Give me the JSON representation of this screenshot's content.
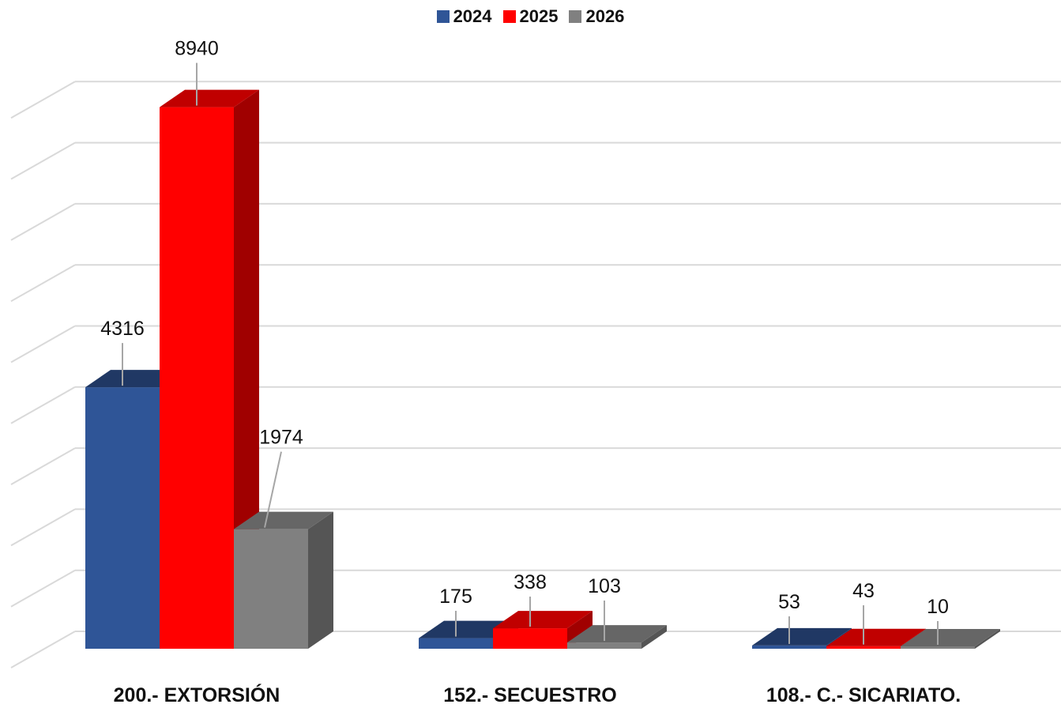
{
  "chart_data": {
    "type": "bar",
    "categories": [
      "200.- EXTORSIÓN",
      "152.- SECUESTRO",
      "108.- C.- SICARIATO."
    ],
    "series": [
      {
        "name": "2024",
        "values": [
          4316,
          175,
          53
        ],
        "color": "#2F5597",
        "top_color": "#203864",
        "side_color": "#1F3A6E"
      },
      {
        "name": "2025",
        "values": [
          8940,
          338,
          43
        ],
        "color": "#FF0000",
        "top_color": "#C00000",
        "side_color": "#A00000"
      },
      {
        "name": "2026",
        "values": [
          1974,
          103,
          10
        ],
        "color": "#808080",
        "top_color": "#666666",
        "side_color": "#555555"
      }
    ],
    "ylim": [
      0,
      9000
    ],
    "grid": true,
    "legend_position": "top-center"
  }
}
